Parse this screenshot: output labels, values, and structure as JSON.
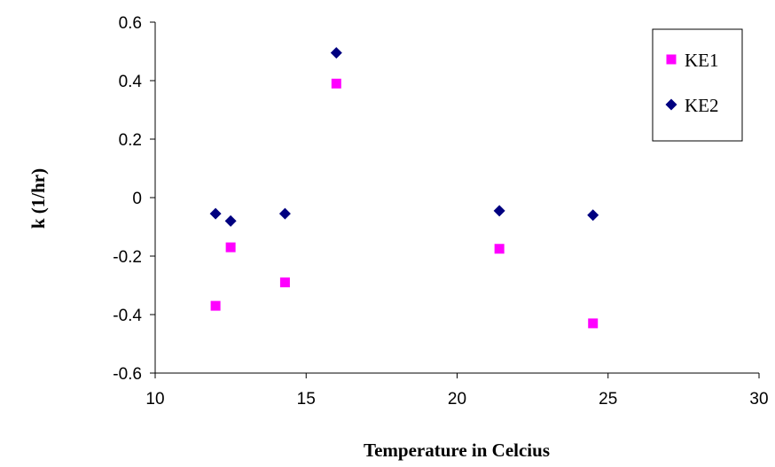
{
  "chart_data": {
    "type": "scatter",
    "title": "",
    "xlabel": "Temperature in Celcius",
    "ylabel": "k (1/hr)",
    "xlim": [
      10,
      30
    ],
    "ylim": [
      -0.6,
      0.6
    ],
    "xticks": [
      10,
      15,
      20,
      25,
      30
    ],
    "yticks": [
      -0.6,
      -0.4,
      -0.2,
      0,
      0.2,
      0.4,
      0.6
    ],
    "xtick_labels": [
      "10",
      "15",
      "20",
      "25",
      "30"
    ],
    "ytick_labels": [
      "-0.6",
      "-0.4",
      "-0.2",
      "0",
      "0.2",
      "0.4",
      "0.6"
    ],
    "grid": false,
    "legend_position": "top-right",
    "series": [
      {
        "name": "KE1",
        "marker": "square",
        "color": "#ff00ff",
        "points": [
          {
            "x": 12.0,
            "y": -0.37
          },
          {
            "x": 12.5,
            "y": -0.17
          },
          {
            "x": 14.3,
            "y": -0.29
          },
          {
            "x": 16.0,
            "y": 0.39
          },
          {
            "x": 21.4,
            "y": -0.175
          },
          {
            "x": 24.5,
            "y": -0.43
          }
        ]
      },
      {
        "name": "KE2",
        "marker": "diamond",
        "color": "#000080",
        "points": [
          {
            "x": 12.0,
            "y": -0.055
          },
          {
            "x": 12.5,
            "y": -0.08
          },
          {
            "x": 14.3,
            "y": -0.055
          },
          {
            "x": 16.0,
            "y": 0.495
          },
          {
            "x": 21.4,
            "y": -0.045
          },
          {
            "x": 24.5,
            "y": -0.06
          }
        ]
      }
    ]
  }
}
